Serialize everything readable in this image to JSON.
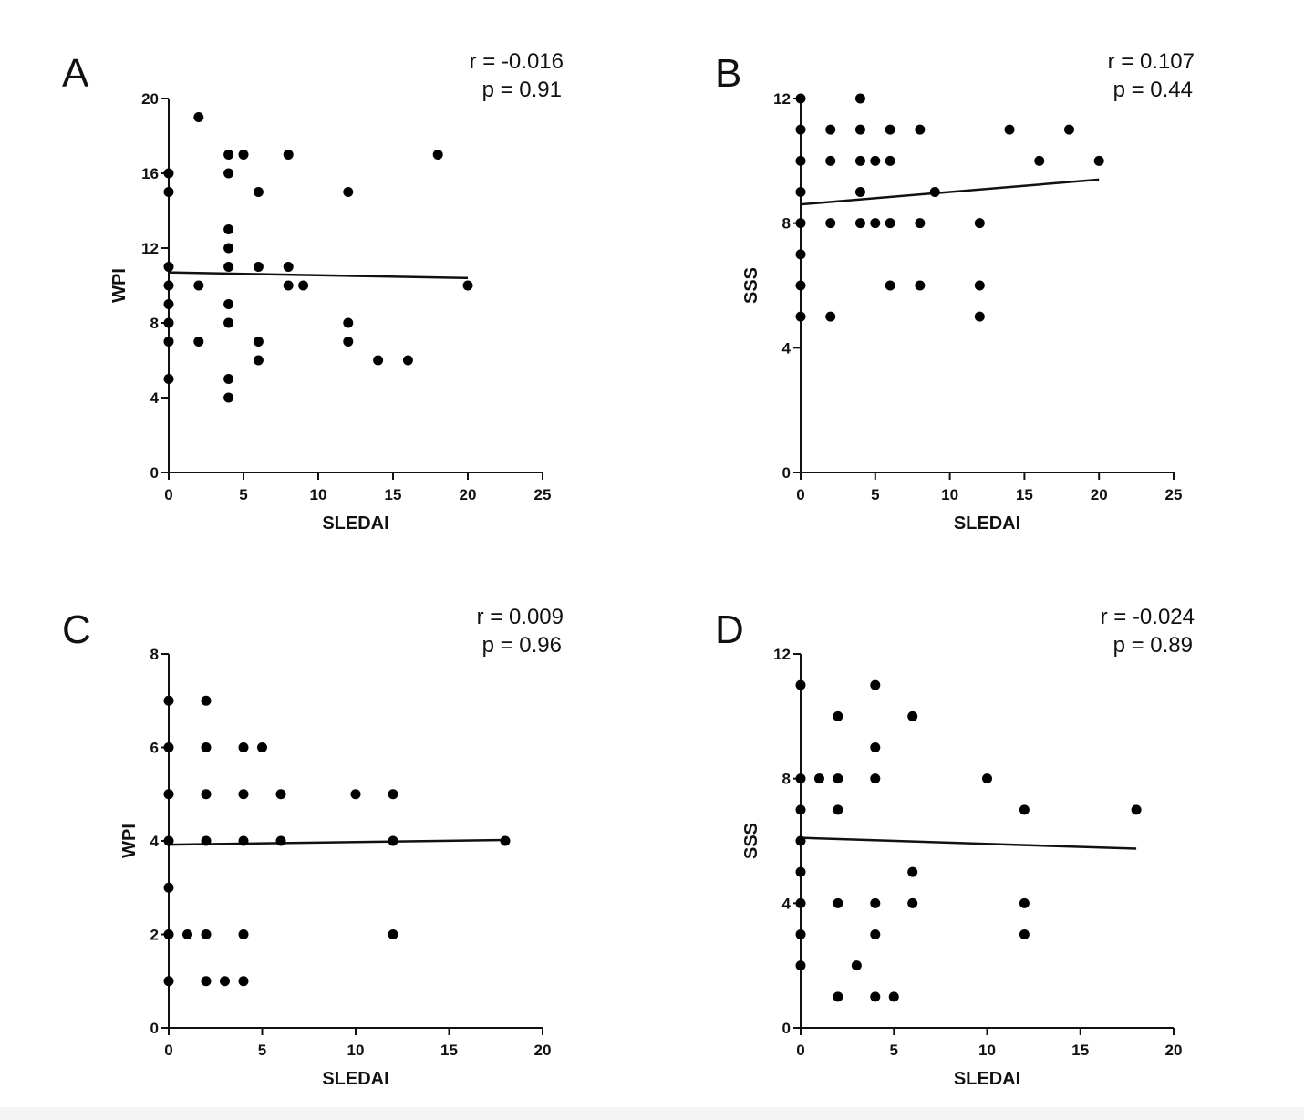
{
  "chart_data": [
    {
      "type": "scatter",
      "panel_label": "A",
      "stats": [
        "r = -0.016",
        "p = 0.91"
      ],
      "xlabel": "SLEDAI",
      "ylabel": "WPI",
      "xlim": [
        0,
        25
      ],
      "ylim": [
        0,
        20
      ],
      "xticks": [
        0,
        5,
        10,
        15,
        20,
        25
      ],
      "yticks": [
        0,
        4,
        8,
        12,
        16,
        20
      ],
      "points": [
        [
          0,
          16
        ],
        [
          0,
          15
        ],
        [
          0,
          11
        ],
        [
          0,
          10
        ],
        [
          0,
          9
        ],
        [
          0,
          8
        ],
        [
          0,
          7
        ],
        [
          0,
          5
        ],
        [
          2,
          19
        ],
        [
          2,
          10
        ],
        [
          2,
          7
        ],
        [
          4,
          17
        ],
        [
          4,
          16
        ],
        [
          4,
          13
        ],
        [
          4,
          12
        ],
        [
          4,
          11
        ],
        [
          4,
          9
        ],
        [
          4,
          8
        ],
        [
          4,
          5
        ],
        [
          4,
          4
        ],
        [
          5,
          17
        ],
        [
          6,
          15
        ],
        [
          6,
          11
        ],
        [
          6,
          7
        ],
        [
          6,
          6
        ],
        [
          8,
          17
        ],
        [
          8,
          11
        ],
        [
          8,
          10
        ],
        [
          9,
          10
        ],
        [
          12,
          15
        ],
        [
          12,
          8
        ],
        [
          12,
          7
        ],
        [
          14,
          6
        ],
        [
          16,
          6
        ],
        [
          18,
          17
        ],
        [
          20,
          10
        ]
      ],
      "regression": {
        "x": [
          0,
          20
        ],
        "y": [
          10.7,
          10.4
        ]
      }
    },
    {
      "type": "scatter",
      "panel_label": "B",
      "stats": [
        "r = 0.107",
        "p = 0.44"
      ],
      "xlabel": "SLEDAI",
      "ylabel": "SSS",
      "xlim": [
        0,
        25
      ],
      "ylim": [
        0,
        12
      ],
      "xticks": [
        0,
        5,
        10,
        15,
        20,
        25
      ],
      "yticks": [
        0,
        4,
        8,
        12
      ],
      "points": [
        [
          0,
          12
        ],
        [
          0,
          11
        ],
        [
          0,
          10
        ],
        [
          0,
          9
        ],
        [
          0,
          8
        ],
        [
          0,
          7
        ],
        [
          0,
          6
        ],
        [
          0,
          5
        ],
        [
          2,
          11
        ],
        [
          2,
          10
        ],
        [
          2,
          8
        ],
        [
          2,
          5
        ],
        [
          4,
          12
        ],
        [
          4,
          11
        ],
        [
          4,
          10
        ],
        [
          4,
          9
        ],
        [
          4,
          8
        ],
        [
          5,
          10
        ],
        [
          5,
          8
        ],
        [
          6,
          11
        ],
        [
          6,
          10
        ],
        [
          6,
          8
        ],
        [
          6,
          6
        ],
        [
          8,
          11
        ],
        [
          8,
          8
        ],
        [
          8,
          6
        ],
        [
          9,
          9
        ],
        [
          12,
          8
        ],
        [
          12,
          6
        ],
        [
          12,
          5
        ],
        [
          14,
          11
        ],
        [
          16,
          10
        ],
        [
          18,
          11
        ],
        [
          20,
          10
        ]
      ],
      "regression": {
        "x": [
          0,
          20
        ],
        "y": [
          8.6,
          9.4
        ]
      }
    },
    {
      "type": "scatter",
      "panel_label": "C",
      "stats": [
        "r = 0.009",
        "p = 0.96"
      ],
      "xlabel": "SLEDAI",
      "ylabel": "WPI",
      "xlim": [
        0,
        20
      ],
      "ylim": [
        0,
        8
      ],
      "xticks": [
        0,
        5,
        10,
        15,
        20
      ],
      "yticks": [
        0,
        2,
        4,
        6,
        8
      ],
      "points": [
        [
          0,
          7
        ],
        [
          0,
          6
        ],
        [
          0,
          5
        ],
        [
          0,
          4
        ],
        [
          0,
          3
        ],
        [
          0,
          2
        ],
        [
          0,
          1
        ],
        [
          1,
          2
        ],
        [
          2,
          7
        ],
        [
          2,
          6
        ],
        [
          2,
          5
        ],
        [
          2,
          4
        ],
        [
          2,
          2
        ],
        [
          2,
          1
        ],
        [
          3,
          1
        ],
        [
          4,
          6
        ],
        [
          4,
          5
        ],
        [
          4,
          4
        ],
        [
          4,
          2
        ],
        [
          4,
          1
        ],
        [
          5,
          6
        ],
        [
          6,
          5
        ],
        [
          6,
          4
        ],
        [
          10,
          5
        ],
        [
          12,
          5
        ],
        [
          12,
          4
        ],
        [
          12,
          2
        ],
        [
          18,
          4
        ]
      ],
      "regression": {
        "x": [
          0,
          18
        ],
        "y": [
          3.92,
          4.02
        ]
      }
    },
    {
      "type": "scatter",
      "panel_label": "D",
      "stats": [
        "r = -0.024",
        "p = 0.89"
      ],
      "xlabel": "SLEDAI",
      "ylabel": "SSS",
      "xlim": [
        0,
        20
      ],
      "ylim": [
        0,
        12
      ],
      "xticks": [
        0,
        5,
        10,
        15,
        20
      ],
      "yticks": [
        0,
        4,
        8,
        12
      ],
      "points": [
        [
          0,
          11
        ],
        [
          0,
          8
        ],
        [
          0,
          7
        ],
        [
          0,
          6
        ],
        [
          0,
          5
        ],
        [
          0,
          4
        ],
        [
          0,
          3
        ],
        [
          0,
          2
        ],
        [
          1,
          8
        ],
        [
          2,
          10
        ],
        [
          2,
          8
        ],
        [
          2,
          7
        ],
        [
          2,
          4
        ],
        [
          2,
          1
        ],
        [
          3,
          2
        ],
        [
          4,
          11
        ],
        [
          4,
          9
        ],
        [
          4,
          8
        ],
        [
          4,
          4
        ],
        [
          4,
          3
        ],
        [
          4,
          1
        ],
        [
          5,
          1
        ],
        [
          6,
          10
        ],
        [
          6,
          5
        ],
        [
          6,
          4
        ],
        [
          10,
          8
        ],
        [
          12,
          7
        ],
        [
          12,
          4
        ],
        [
          12,
          3
        ],
        [
          18,
          7
        ]
      ],
      "regression": {
        "x": [
          0,
          18
        ],
        "y": [
          6.1,
          5.75
        ]
      }
    }
  ]
}
